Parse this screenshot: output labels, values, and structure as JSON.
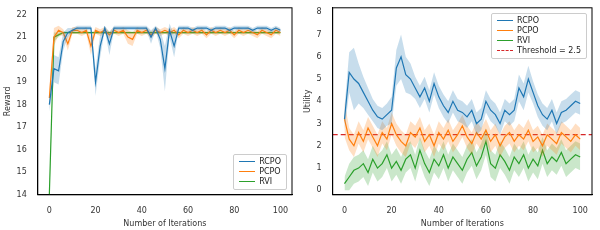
{
  "chart_data": [
    {
      "type": "line",
      "x_label": "Number of Iterations",
      "y_label": "Reward",
      "x": [
        0,
        2,
        4,
        6,
        8,
        10,
        12,
        14,
        16,
        18,
        20,
        22,
        24,
        26,
        28,
        30,
        32,
        34,
        36,
        38,
        40,
        42,
        44,
        46,
        48,
        50,
        52,
        54,
        56,
        58,
        60,
        62,
        64,
        66,
        68,
        70,
        72,
        74,
        76,
        78,
        80,
        82,
        84,
        86,
        88,
        90,
        92,
        94,
        96,
        98,
        100
      ],
      "xlim": [
        -5,
        105
      ],
      "xticks": [
        0,
        20,
        40,
        60,
        80,
        100
      ],
      "ylim": [
        14,
        22.3
      ],
      "yticks": [
        14,
        15,
        16,
        17,
        18,
        19,
        20,
        21,
        22
      ],
      "grid": false,
      "legend": "lower right",
      "series": [
        {
          "name": "RCPO",
          "color": "#1f77b4",
          "line_style": "solid",
          "values": [
            18.0,
            19.6,
            19.5,
            20.8,
            21.2,
            21.3,
            21.4,
            21.4,
            21.4,
            21.4,
            19.0,
            20.6,
            21.4,
            20.7,
            21.4,
            21.4,
            21.4,
            21.4,
            21.4,
            21.4,
            21.4,
            21.4,
            21.0,
            21.4,
            20.9,
            19.6,
            21.3,
            20.6,
            21.4,
            21.4,
            21.4,
            21.3,
            21.4,
            21.4,
            21.4,
            21.3,
            21.4,
            21.4,
            21.4,
            21.3,
            21.4,
            21.4,
            21.4,
            21.4,
            21.3,
            21.4,
            21.4,
            21.4,
            21.3,
            21.4,
            21.3
          ],
          "error": [
            0.3,
            0.6,
            0.6,
            0.4,
            0.2,
            0.1,
            0.1,
            0.1,
            0.1,
            0.1,
            0.6,
            0.5,
            0.1,
            0.5,
            0.1,
            0.1,
            0.1,
            0.1,
            0.1,
            0.1,
            0.1,
            0.1,
            0.3,
            0.1,
            0.4,
            1.0,
            0.3,
            0.5,
            0.1,
            0.1,
            0.1,
            0.1,
            0.1,
            0.1,
            0.1,
            0.1,
            0.1,
            0.1,
            0.1,
            0.1,
            0.1,
            0.1,
            0.1,
            0.1,
            0.1,
            0.1,
            0.1,
            0.1,
            0.1,
            0.1,
            0.1
          ]
        },
        {
          "name": "PCPO",
          "color": "#ff7f0e",
          "line_style": "solid",
          "values": [
            18.3,
            21.0,
            21.3,
            21.2,
            20.7,
            21.3,
            21.3,
            21.2,
            21.3,
            20.6,
            21.3,
            21.2,
            21.3,
            21.1,
            21.3,
            21.2,
            21.3,
            21.0,
            20.9,
            21.3,
            21.2,
            21.3,
            21.1,
            21.3,
            21.2,
            21.3,
            21.2,
            21.3,
            21.1,
            21.3,
            21.2,
            21.3,
            21.2,
            21.3,
            21.1,
            21.3,
            21.2,
            21.3,
            21.2,
            21.3,
            21.1,
            21.3,
            21.2,
            21.3,
            21.2,
            21.1,
            21.3,
            21.2,
            21.1,
            21.3,
            21.2
          ],
          "error": [
            0.5,
            0.4,
            0.2,
            0.15,
            0.3,
            0.15,
            0.15,
            0.15,
            0.15,
            0.4,
            0.15,
            0.15,
            0.15,
            0.15,
            0.15,
            0.15,
            0.15,
            0.3,
            0.3,
            0.15,
            0.15,
            0.15,
            0.15,
            0.15,
            0.15,
            0.15,
            0.15,
            0.15,
            0.15,
            0.15,
            0.15,
            0.15,
            0.15,
            0.15,
            0.15,
            0.15,
            0.15,
            0.15,
            0.15,
            0.15,
            0.15,
            0.15,
            0.15,
            0.15,
            0.15,
            0.15,
            0.15,
            0.15,
            0.15,
            0.15,
            0.15
          ]
        },
        {
          "name": "RVI",
          "color": "#2ca02c",
          "line_style": "solid",
          "values": [
            14.0,
            21.0,
            21.1,
            21.2,
            21.2,
            21.2,
            21.2,
            21.2,
            21.2,
            21.2,
            21.2,
            21.2,
            21.2,
            21.2,
            21.2,
            21.2,
            21.2,
            21.2,
            21.2,
            21.2,
            21.2,
            21.2,
            21.2,
            21.2,
            21.2,
            21.2,
            21.2,
            21.2,
            21.2,
            21.2,
            21.2,
            21.2,
            21.2,
            21.2,
            21.2,
            21.2,
            21.2,
            21.2,
            21.2,
            21.2,
            21.2,
            21.2,
            21.2,
            21.2,
            21.2,
            21.2,
            21.2,
            21.2,
            21.2,
            21.2,
            21.2
          ],
          "error": [
            0.3,
            0.2,
            0.1,
            0.05,
            0.05,
            0.05,
            0.05,
            0.05,
            0.05,
            0.05,
            0.05,
            0.05,
            0.05,
            0.05,
            0.05,
            0.05,
            0.05,
            0.05,
            0.05,
            0.05,
            0.05,
            0.05,
            0.05,
            0.05,
            0.05,
            0.05,
            0.05,
            0.05,
            0.05,
            0.05,
            0.05,
            0.05,
            0.05,
            0.05,
            0.05,
            0.05,
            0.05,
            0.05,
            0.05,
            0.05,
            0.05,
            0.05,
            0.05,
            0.05,
            0.05,
            0.05,
            0.05,
            0.05,
            0.05,
            0.05,
            0.05
          ]
        }
      ]
    },
    {
      "type": "line",
      "x_label": "Number of Iterations",
      "y_label": "Utility",
      "x": [
        0,
        2,
        4,
        6,
        8,
        10,
        12,
        14,
        16,
        18,
        20,
        22,
        24,
        26,
        28,
        30,
        32,
        34,
        36,
        38,
        40,
        42,
        44,
        46,
        48,
        50,
        52,
        54,
        56,
        58,
        60,
        62,
        64,
        66,
        68,
        70,
        72,
        74,
        76,
        78,
        80,
        82,
        84,
        86,
        88,
        90,
        92,
        94,
        96,
        98,
        100
      ],
      "xlim": [
        -5,
        105
      ],
      "xticks": [
        0,
        20,
        40,
        60,
        80,
        100
      ],
      "ylim": [
        -0.2,
        8.2
      ],
      "yticks": [
        0,
        1,
        2,
        3,
        4,
        5,
        6,
        7,
        8
      ],
      "grid": false,
      "legend": "upper right",
      "series": [
        {
          "name": "RCPO",
          "color": "#1f77b4",
          "line_style": "solid",
          "values": [
            3.2,
            5.3,
            5.0,
            4.8,
            4.4,
            4.0,
            3.6,
            3.3,
            3.2,
            3.4,
            3.6,
            5.5,
            6.0,
            5.2,
            5.0,
            4.6,
            4.2,
            4.6,
            4.0,
            4.8,
            4.2,
            3.8,
            3.5,
            4.0,
            3.6,
            3.5,
            3.3,
            3.6,
            3.0,
            3.2,
            4.0,
            3.6,
            3.4,
            3.0,
            3.6,
            3.4,
            3.6,
            4.6,
            4.2,
            5.0,
            4.4,
            3.8,
            3.4,
            3.2,
            3.6,
            3.0,
            3.5,
            3.6,
            3.8,
            4.0,
            3.9
          ],
          "error": [
            0.5,
            0.9,
            1.4,
            0.9,
            0.7,
            0.6,
            0.5,
            0.5,
            0.5,
            0.5,
            0.6,
            0.8,
            1.0,
            0.8,
            0.7,
            0.5,
            0.5,
            0.5,
            0.5,
            0.5,
            0.5,
            0.5,
            0.5,
            0.5,
            0.5,
            0.5,
            0.5,
            0.5,
            0.5,
            0.5,
            0.5,
            0.5,
            0.5,
            0.5,
            0.5,
            0.5,
            0.5,
            0.6,
            0.6,
            0.6,
            0.5,
            0.5,
            0.5,
            0.5,
            0.5,
            0.5,
            0.5,
            0.5,
            0.5,
            0.5,
            0.5
          ]
        },
        {
          "name": "PCPO",
          "color": "#ff7f0e",
          "line_style": "solid",
          "values": [
            3.2,
            2.3,
            2.0,
            2.6,
            2.2,
            2.8,
            2.4,
            2.0,
            2.6,
            2.3,
            3.0,
            2.5,
            2.2,
            2.0,
            2.6,
            2.4,
            2.8,
            2.2,
            2.5,
            2.0,
            2.6,
            2.3,
            2.7,
            2.2,
            2.5,
            2.9,
            2.4,
            2.1,
            2.6,
            2.3,
            2.7,
            2.2,
            2.5,
            2.0,
            2.4,
            2.6,
            2.2,
            2.5,
            2.3,
            2.7,
            2.2,
            2.4,
            2.0,
            2.5,
            2.3,
            2.1,
            2.6,
            2.4,
            2.2,
            2.5,
            2.3
          ],
          "error": [
            0.8,
            0.5,
            0.5,
            0.5,
            0.5,
            0.5,
            0.5,
            0.5,
            0.5,
            0.5,
            0.5,
            0.5,
            0.5,
            0.5,
            0.5,
            0.5,
            0.5,
            0.5,
            0.5,
            0.5,
            0.5,
            0.5,
            0.5,
            0.5,
            0.5,
            0.5,
            0.5,
            0.5,
            0.5,
            0.5,
            0.5,
            0.5,
            0.5,
            0.5,
            0.5,
            0.5,
            0.5,
            0.5,
            0.5,
            0.5,
            0.5,
            0.5,
            0.5,
            0.5,
            0.5,
            0.5,
            0.5,
            0.5,
            0.5,
            0.5,
            0.5
          ]
        },
        {
          "name": "RVI",
          "color": "#2ca02c",
          "line_style": "solid",
          "values": [
            0.3,
            0.6,
            0.9,
            1.0,
            1.2,
            0.8,
            1.4,
            1.0,
            1.2,
            1.6,
            1.0,
            1.3,
            0.9,
            1.4,
            1.6,
            1.0,
            1.8,
            1.2,
            0.8,
            1.4,
            1.1,
            1.6,
            1.0,
            1.5,
            1.2,
            0.9,
            1.4,
            1.7,
            1.1,
            1.5,
            2.2,
            1.2,
            1.0,
            1.6,
            1.3,
            0.9,
            1.5,
            1.2,
            1.6,
            1.0,
            1.4,
            1.1,
            1.8,
            1.2,
            1.5,
            1.3,
            1.7,
            1.2,
            1.4,
            1.6,
            1.5
          ],
          "error": [
            0.3,
            0.6,
            0.6,
            0.6,
            0.6,
            0.6,
            0.6,
            0.6,
            0.6,
            0.6,
            0.6,
            0.6,
            0.6,
            0.6,
            0.6,
            0.6,
            0.6,
            0.6,
            0.6,
            0.6,
            0.6,
            0.6,
            0.6,
            0.6,
            0.6,
            0.6,
            0.6,
            0.6,
            0.6,
            0.6,
            0.6,
            0.6,
            0.6,
            0.6,
            0.6,
            0.6,
            0.6,
            0.6,
            0.6,
            0.6,
            0.6,
            0.6,
            0.6,
            0.6,
            0.6,
            0.6,
            0.6,
            0.6,
            0.6,
            0.6,
            0.6
          ]
        }
      ],
      "hlines": [
        {
          "name": "Threshold = 2.5",
          "value": 2.5,
          "color": "#d62728",
          "line_style": "dashed"
        }
      ]
    }
  ]
}
